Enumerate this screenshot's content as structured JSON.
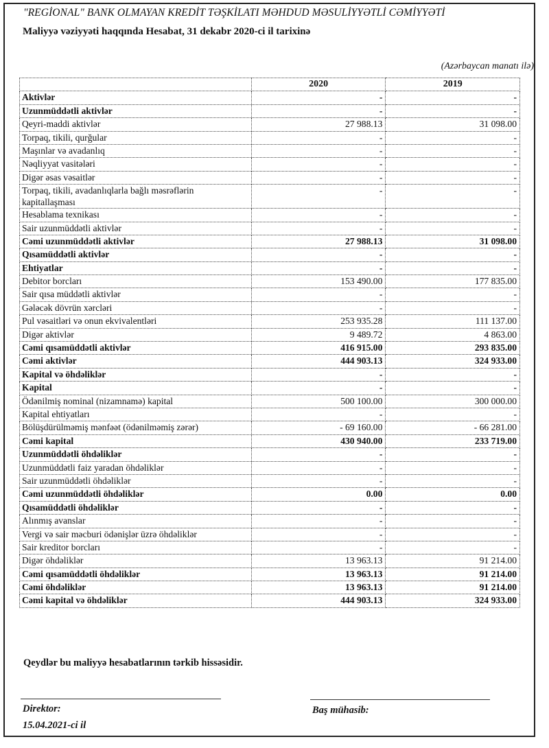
{
  "header": {
    "organization": "\"REGİONAL\" BANK OLMAYAN KREDİT TƏŞKİLATI MƏHDUD MƏSULİYYƏTLİ CƏMİYYƏTİ",
    "title": "Maliyyə vəziyyəti haqqında Hesabat, 31 dekabr 2020-ci il tarixinə",
    "units": "(Azərbaycan manatı ilə)"
  },
  "table": {
    "columns": [
      "",
      "2020",
      "2019"
    ],
    "rows": [
      {
        "label": "Aktivlər",
        "v2020": "-",
        "v2019": "-",
        "bold": true
      },
      {
        "label": "Uzunmüddətli aktivlər",
        "v2020": "-",
        "v2019": "-",
        "bold": true
      },
      {
        "label": "Qeyri-maddi aktivlər",
        "v2020": "27 988.13",
        "v2019": "31 098.00"
      },
      {
        "label": "Torpaq, tikili, qurğular",
        "v2020": "-",
        "v2019": "-"
      },
      {
        "label": "Maşınlar və avadanlıq",
        "v2020": "-",
        "v2019": "-"
      },
      {
        "label": "Nəqliyyat vasitələri",
        "v2020": "-",
        "v2019": "-"
      },
      {
        "label": "Digər əsas vəsaitlər",
        "v2020": "-",
        "v2019": "-"
      },
      {
        "label": "Torpaq, tikili, avadanlıqlarla bağlı məsrəflərin kapitallaşması",
        "v2020": "-",
        "v2019": "-"
      },
      {
        "label": "Hesablama texnikası",
        "v2020": "-",
        "v2019": "-"
      },
      {
        "label": "Sair uzunmüddətli aktivlər",
        "v2020": "-",
        "v2019": "-"
      },
      {
        "label": "Cəmi uzunmüddətli aktivlər",
        "v2020": "27 988.13",
        "v2019": "31 098.00",
        "bold": true
      },
      {
        "label": "Qısamüddətli aktivlər",
        "v2020": "-",
        "v2019": "-",
        "bold": true
      },
      {
        "label": "Ehtiyatlar",
        "v2020": "-",
        "v2019": "-",
        "bold": true
      },
      {
        "label": "Debitor borcları",
        "v2020": "153 490.00",
        "v2019": "177 835.00"
      },
      {
        "label": "Sair qısa müddətli aktivlər",
        "v2020": "-",
        "v2019": "-"
      },
      {
        "label": "Gələcək dövrün xərcləri",
        "v2020": "-",
        "v2019": "-"
      },
      {
        "label": "Pul vəsaitləri və onun ekvivalentləri",
        "v2020": "253 935.28",
        "v2019": "111 137.00"
      },
      {
        "label": "Digər aktivlər",
        "v2020": "9 489.72",
        "v2019": "4 863.00"
      },
      {
        "label": "Cəmi qısamüddətli aktivlər",
        "v2020": "416 915.00",
        "v2019": "293 835.00",
        "bold": true
      },
      {
        "label": "Cəmi aktivlər",
        "v2020": "444 903.13",
        "v2019": "324 933.00",
        "bold": true
      },
      {
        "label": "Kapital və öhdəliklər",
        "v2020": "-",
        "v2019": "-",
        "bold": true
      },
      {
        "label": "Kapital",
        "v2020": "-",
        "v2019": "-",
        "bold": true
      },
      {
        "label": "Ödənilmiş nominal (nizamnamə) kapital",
        "v2020": "500 100.00",
        "v2019": "300 000.00"
      },
      {
        "label": "Kapital ehtiyatları",
        "v2020": "-",
        "v2019": "-"
      },
      {
        "label": "Bölüşdürülməmiş mənfəət (ödənilməmiş zərər)",
        "v2020": "- 69 160.00",
        "v2019": "- 66 281.00"
      },
      {
        "label": "Cəmi kapital",
        "v2020": "430 940.00",
        "v2019": "233 719.00",
        "bold": true
      },
      {
        "label": "Uzunmüddətli öhdəliklər",
        "v2020": "-",
        "v2019": "-",
        "bold": true
      },
      {
        "label": "Uzunmüddətli faiz yaradan öhdəliklər",
        "v2020": "-",
        "v2019": "-"
      },
      {
        "label": "Sair uzunmüddətli öhdəliklər",
        "v2020": "-",
        "v2019": "-"
      },
      {
        "label": "Cəmi uzunmüddətli öhdəliklər",
        "v2020": "0.00",
        "v2019": "0.00",
        "bold": true
      },
      {
        "label": "Qısamüddətli öhdəliklər",
        "v2020": "-",
        "v2019": "-",
        "bold": true
      },
      {
        "label": "Alınmış avanslar",
        "v2020": "-",
        "v2019": "-"
      },
      {
        "label": "Vergi və sair məcburi ödənişlər üzrə öhdəliklər",
        "v2020": "-",
        "v2019": "-"
      },
      {
        "label": "Sair kreditor borcları",
        "v2020": "-",
        "v2019": "-"
      },
      {
        "label": "Digər öhdəliklər",
        "v2020": "13 963.13",
        "v2019": "91 214.00"
      },
      {
        "label": "Cəmi qısamüddətli öhdəliklər",
        "v2020": "13 963.13",
        "v2019": "91 214.00",
        "bold": true
      },
      {
        "label": "Cəmi öhdəliklər",
        "v2020": "13 963.13",
        "v2019": "91 214.00",
        "bold": true
      },
      {
        "label": "Cəmi kapital və öhdəliklər",
        "v2020": "444 903.13",
        "v2019": "324 933.00",
        "bold": true
      }
    ]
  },
  "footer": {
    "note": "Qeydlər bu maliyyə hesabatlarının tərkib hissəsidir.",
    "director_label": "Direktor:",
    "date": "15.04.2021-ci  il",
    "chief_accountant_label": "Baş mühasib:"
  }
}
